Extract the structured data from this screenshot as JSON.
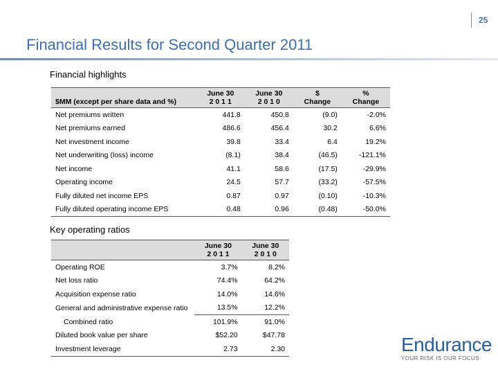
{
  "page_number": "25",
  "title": "Financial Results for Second  Quarter 2011",
  "highlights": {
    "heading": "Financial highlights",
    "header": {
      "label": "$MM (except per share data and %)",
      "col1_line1": "June 30",
      "col1_line2": "2 0 1 1",
      "col2_line1": "June 30",
      "col2_line2": "2 0 1 0",
      "col3_line1": "$",
      "col3_line2": "Change",
      "col4_line1": "%",
      "col4_line2": "Change"
    },
    "rows": [
      {
        "label": "Net premiums written",
        "v2011": "441.8",
        "v2010": "450.8",
        "chg": "(9.0)",
        "pct": "-2.0%"
      },
      {
        "label": "Net premiums earned",
        "v2011": "486.6",
        "v2010": "456.4",
        "chg": "30.2",
        "pct": "6.6%"
      },
      {
        "label": "Net investment income",
        "v2011": "39.8",
        "v2010": "33.4",
        "chg": "6.4",
        "pct": "19.2%"
      },
      {
        "label": "Net underwriting (loss)  income",
        "v2011": "(8.1)",
        "v2010": "38.4",
        "chg": "(46.5)",
        "pct": "-121.1%"
      },
      {
        "label": "Net  income",
        "v2011": "41.1",
        "v2010": "58.6",
        "chg": "(17.5)",
        "pct": "-29.9%"
      },
      {
        "label": "Operating  income",
        "v2011": "24.5",
        "v2010": "57.7",
        "chg": "(33.2)",
        "pct": "-57.5%"
      },
      {
        "label": "Fully diluted net income EPS",
        "v2011": "0.87",
        "v2010": "0.97",
        "chg": "(0.10)",
        "pct": "-10.3%"
      },
      {
        "label": "Fully diluted operating income EPS",
        "v2011": "0.48",
        "v2010": "0.96",
        "chg": "(0.48)",
        "pct": "-50.0%"
      }
    ]
  },
  "ratios": {
    "heading": "Key operating ratios",
    "header": {
      "col1_line1": "June 30",
      "col1_line2": "2 0 1 1",
      "col2_line1": "June 30",
      "col2_line2": "2 0 1 0"
    },
    "rows": [
      {
        "label": "Operating ROE",
        "v2011": "3.7%",
        "v2010": "8.2%"
      },
      {
        "label": "Net loss ratio",
        "v2011": "74.4%",
        "v2010": "64.2%"
      },
      {
        "label": "Acquisition expense ratio",
        "v2011": "14.0%",
        "v2010": "14.6%"
      },
      {
        "label": "General and administrative expense ratio",
        "v2011": "13.5%",
        "v2010": "12.2%"
      },
      {
        "label": "Combined ratio",
        "v2011": "101.9%",
        "v2010": "91.0%"
      },
      {
        "label": "Diluted book value per share",
        "v2011": "$52.20",
        "v2010": "$47.78"
      },
      {
        "label": "Investment leverage",
        "v2011": "2.73",
        "v2010": "2.30"
      }
    ]
  },
  "logo": {
    "name": "Endurance",
    "tagline": "YOUR RISK IS OUR FOCUS",
    "color": "#2c5f9e"
  }
}
